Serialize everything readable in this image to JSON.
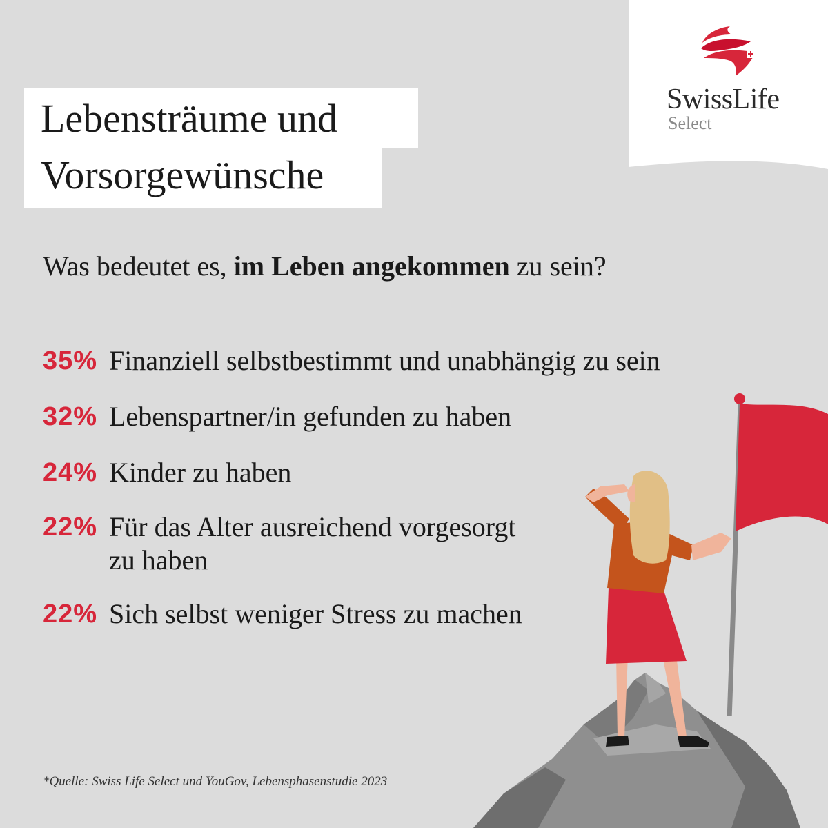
{
  "title": {
    "line1": "Lebensträume und",
    "line2": "Vorsorgewünsche"
  },
  "logo": {
    "name": "SwissLife",
    "sub": "Select"
  },
  "question": {
    "before": "Was bedeutet es, ",
    "bold": "im Leben angekommen",
    "after": " zu sein?"
  },
  "stats": [
    {
      "pct": "35%",
      "text": "Finanziell selbstbestimmt und unabhängig zu sein"
    },
    {
      "pct": "32%",
      "text": "Lebenspartner/in gefunden zu haben"
    },
    {
      "pct": "24%",
      "text": "Kinder zu haben"
    },
    {
      "pct": "22%",
      "text": "Für das Alter ausreichend vorgesorgt",
      "text2": "zu haben"
    },
    {
      "pct": "22%",
      "text": "Sich selbst weniger Stress zu machen"
    }
  ],
  "footnote": "*Quelle: Swiss Life Select und YouGov, Lebensphasenstudie 2023",
  "colors": {
    "background": "#dcdcdc",
    "accent_red": "#d7263a",
    "panel_white": "#ffffff"
  },
  "icons": {
    "logo_mark": "swisslife-swirl-logo-icon",
    "illustration": "woman-with-flag-on-summit-illustration"
  }
}
